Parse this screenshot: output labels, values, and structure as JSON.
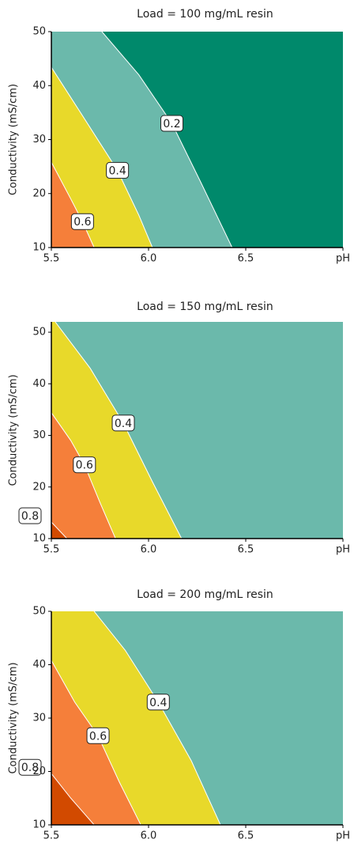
{
  "chart_data": [
    {
      "type": "contour",
      "title": "Load = 100 mg/mL resin",
      "ylabel": "Conductivity (mS/cm)",
      "xlim": [
        5.5,
        7.0
      ],
      "xticks": [
        5.5,
        {
          "value": 6.0,
          "label": "6.0"
        },
        6.5,
        {
          "value": 7.0,
          "label": "pH"
        }
      ],
      "ylim": [
        10,
        50
      ],
      "yticks": [
        10,
        20,
        30,
        40,
        50
      ],
      "background": "#00896b",
      "contours": [
        {
          "level": 0.2,
          "color": "#6bb9ab",
          "x": [
            5.76,
            5.95,
            6.12,
            6.27,
            6.43
          ],
          "y": [
            50,
            42,
            33,
            22,
            10
          ]
        },
        {
          "level": 0.4,
          "color": "#e8d92a",
          "x": [
            5.5,
            5.65,
            5.84,
            5.95,
            6.02
          ],
          "y": [
            43.4,
            35,
            24.3,
            16,
            10
          ]
        },
        {
          "level": 0.6,
          "color": "#f57f3a",
          "x": [
            5.5,
            5.6,
            5.66,
            5.72
          ],
          "y": [
            25.8,
            19,
            14.8,
            10
          ]
        }
      ]
    },
    {
      "type": "contour",
      "title": "Load = 150 mg/mL resin",
      "ylabel": "Conductivity (mS/cm)",
      "xlim": [
        5.5,
        7.0
      ],
      "xticks": [
        5.5,
        {
          "value": 6.0,
          "label": "6.0"
        },
        6.5,
        {
          "value": 7.0,
          "label": "pH"
        }
      ],
      "ylim": [
        10,
        52
      ],
      "yticks": [
        10,
        20,
        30,
        40,
        50
      ],
      "background": "#6bb9ab",
      "contours": [
        {
          "level": 0.4,
          "color": "#e8d92a",
          "x": [
            5.52,
            5.7,
            5.87,
            6.02,
            6.17
          ],
          "y": [
            52,
            43,
            32.4,
            21,
            10
          ]
        },
        {
          "level": 0.6,
          "color": "#f57f3a",
          "x": [
            5.5,
            5.6,
            5.67,
            5.75,
            5.83
          ],
          "y": [
            34.4,
            29,
            24.3,
            17,
            10
          ]
        },
        {
          "level": 0.8,
          "color": "#d24a00",
          "x": [
            5.5,
            5.58
          ],
          "y": [
            13.2,
            10
          ]
        }
      ]
    },
    {
      "type": "contour",
      "title": "Load = 200 mg/mL resin",
      "ylabel": "Conductivity (mS/cm)",
      "xlim": [
        5.5,
        7.0
      ],
      "xticks": [
        5.5,
        {
          "value": 6.0,
          "label": "6.0"
        },
        6.5,
        {
          "value": 7.0,
          "label": "pH"
        }
      ],
      "ylim": [
        10,
        50
      ],
      "yticks": [
        10,
        20,
        30,
        40,
        50
      ],
      "background": "#6bb9ab",
      "contours": [
        {
          "level": 0.4,
          "color": "#e8d92a",
          "x": [
            5.72,
            5.88,
            6.05,
            6.22,
            6.37
          ],
          "y": [
            50,
            42.7,
            33,
            22,
            10
          ]
        },
        {
          "level": 0.6,
          "color": "#f57f3a",
          "x": [
            5.5,
            5.62,
            5.74,
            5.85,
            5.96
          ],
          "y": [
            40.8,
            33,
            26.7,
            18,
            10
          ]
        },
        {
          "level": 0.8,
          "color": "#d24a00",
          "x": [
            5.5,
            5.6,
            5.72
          ],
          "y": [
            19.6,
            15,
            10
          ]
        }
      ]
    }
  ]
}
